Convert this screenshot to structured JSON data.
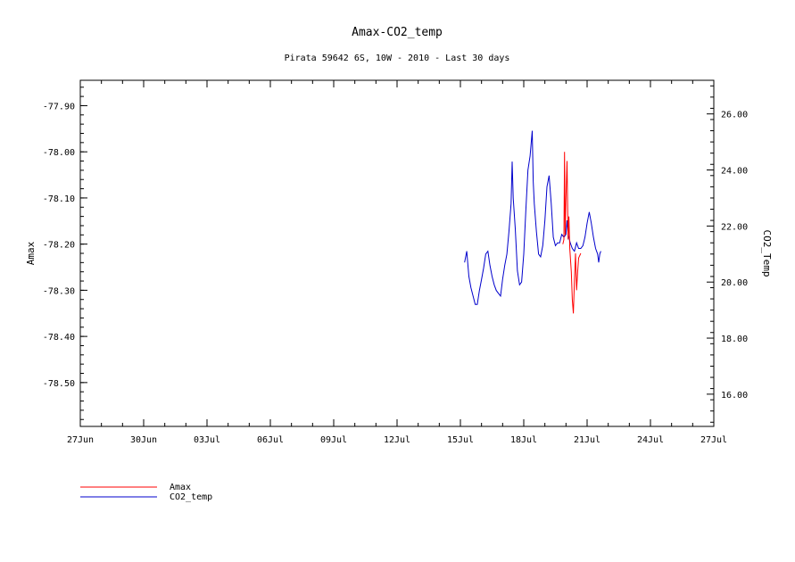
{
  "chart_data": {
    "type": "line",
    "title": "Amax-CO2_temp",
    "subtitle": "Pirata 59642 6S, 10W - 2010 - Last 30 days",
    "ylabel_left": "Amax",
    "ylabel_right": "CO2_Temp",
    "x_ticks": [
      "27Jun",
      "30Jun",
      "03Jul",
      "06Jul",
      "09Jul",
      "12Jul",
      "15Jul",
      "18Jul",
      "21Jul",
      "24Jul",
      "27Jul"
    ],
    "x_range_days": [
      0,
      30
    ],
    "y_left_ticks": [
      "-77.90",
      "-78.00",
      "-78.10",
      "-78.20",
      "-78.30",
      "-78.40",
      "-78.50"
    ],
    "y_left_range": [
      -78.595,
      -77.845
    ],
    "y_right_ticks": [
      "26.00",
      "24.00",
      "22.00",
      "20.00",
      "18.00",
      "16.00"
    ],
    "y_right_range": [
      14.85,
      27.2
    ],
    "grid": false,
    "legend_position": "bottom-left",
    "series": [
      {
        "name": "Amax",
        "color": "#ff0000",
        "axis": "left",
        "points": [
          [
            22.85,
            -78.2
          ],
          [
            22.9,
            -78.19
          ],
          [
            22.93,
            -78.0
          ],
          [
            22.96,
            -78.18
          ],
          [
            23.0,
            -78.1
          ],
          [
            23.05,
            -78.02
          ],
          [
            23.1,
            -78.19
          ],
          [
            23.14,
            -78.14
          ],
          [
            23.18,
            -78.21
          ],
          [
            23.25,
            -78.26
          ],
          [
            23.3,
            -78.32
          ],
          [
            23.35,
            -78.35
          ],
          [
            23.4,
            -78.28
          ],
          [
            23.45,
            -78.22
          ],
          [
            23.5,
            -78.3
          ],
          [
            23.55,
            -78.26
          ],
          [
            23.6,
            -78.23
          ],
          [
            23.7,
            -78.22
          ]
        ]
      },
      {
        "name": "CO2_temp",
        "color": "#0000cc",
        "axis": "right",
        "points": [
          [
            18.2,
            20.7
          ],
          [
            18.3,
            21.1
          ],
          [
            18.4,
            20.2
          ],
          [
            18.5,
            19.8
          ],
          [
            18.6,
            19.5
          ],
          [
            18.7,
            19.2
          ],
          [
            18.8,
            19.2
          ],
          [
            18.9,
            19.7
          ],
          [
            19.0,
            20.1
          ],
          [
            19.1,
            20.5
          ],
          [
            19.2,
            21.0
          ],
          [
            19.3,
            21.1
          ],
          [
            19.4,
            20.6
          ],
          [
            19.5,
            20.2
          ],
          [
            19.6,
            19.9
          ],
          [
            19.7,
            19.7
          ],
          [
            19.8,
            19.6
          ],
          [
            19.9,
            19.5
          ],
          [
            20.0,
            20.1
          ],
          [
            20.1,
            20.6
          ],
          [
            20.2,
            21.0
          ],
          [
            20.3,
            21.8
          ],
          [
            20.4,
            22.8
          ],
          [
            20.45,
            24.3
          ],
          [
            20.5,
            23.0
          ],
          [
            20.6,
            21.9
          ],
          [
            20.7,
            20.4
          ],
          [
            20.8,
            19.9
          ],
          [
            20.9,
            20.0
          ],
          [
            21.0,
            21.0
          ],
          [
            21.1,
            22.6
          ],
          [
            21.2,
            24.0
          ],
          [
            21.3,
            24.5
          ],
          [
            21.4,
            25.4
          ],
          [
            21.45,
            23.6
          ],
          [
            21.5,
            22.8
          ],
          [
            21.6,
            21.8
          ],
          [
            21.7,
            21.0
          ],
          [
            21.8,
            20.9
          ],
          [
            21.9,
            21.3
          ],
          [
            22.0,
            22.2
          ],
          [
            22.1,
            23.4
          ],
          [
            22.2,
            23.8
          ],
          [
            22.3,
            22.8
          ],
          [
            22.4,
            21.6
          ],
          [
            22.5,
            21.3
          ],
          [
            22.6,
            21.4
          ],
          [
            22.7,
            21.4
          ],
          [
            22.8,
            21.7
          ],
          [
            22.9,
            21.6
          ],
          [
            23.0,
            21.7
          ],
          [
            23.05,
            22.2
          ],
          [
            23.1,
            21.7
          ],
          [
            23.2,
            21.4
          ],
          [
            23.3,
            21.2
          ],
          [
            23.4,
            21.1
          ],
          [
            23.5,
            21.4
          ],
          [
            23.6,
            21.2
          ],
          [
            23.7,
            21.2
          ],
          [
            23.8,
            21.3
          ],
          [
            23.9,
            21.6
          ],
          [
            24.0,
            22.1
          ],
          [
            24.1,
            22.5
          ],
          [
            24.2,
            22.1
          ],
          [
            24.3,
            21.6
          ],
          [
            24.4,
            21.2
          ],
          [
            24.5,
            21.0
          ],
          [
            24.55,
            20.7
          ],
          [
            24.6,
            21.0
          ],
          [
            24.65,
            21.1
          ]
        ]
      }
    ]
  }
}
